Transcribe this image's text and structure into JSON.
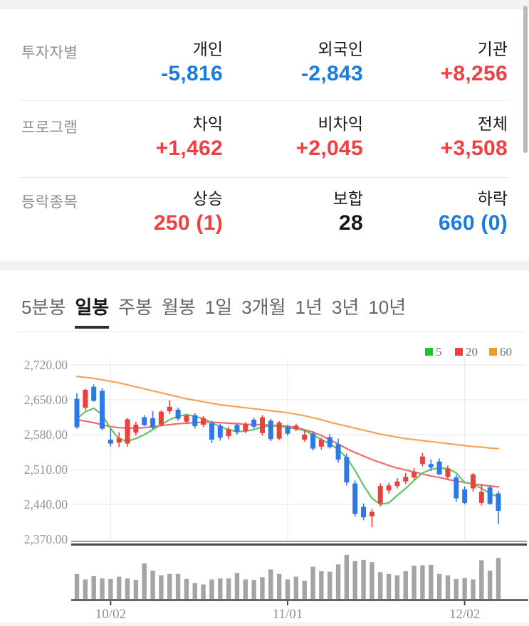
{
  "stats": {
    "colors": {
      "blue": "#1b7ce0",
      "red": "#ee4143",
      "black": "#17181a"
    },
    "rows": [
      {
        "label": "투자자별",
        "cols": [
          {
            "header": "개인",
            "value": "-5,816",
            "color": "blue"
          },
          {
            "header": "외국인",
            "value": "-2,843",
            "color": "blue"
          },
          {
            "header": "기관",
            "value": "+8,256",
            "color": "red"
          }
        ]
      },
      {
        "label": "프로그램",
        "cols": [
          {
            "header": "차익",
            "value": "+1,462",
            "color": "red"
          },
          {
            "header": "비차익",
            "value": "+2,045",
            "color": "red"
          },
          {
            "header": "전체",
            "value": "+3,508",
            "color": "red"
          }
        ]
      },
      {
        "label": "등락종목",
        "cols": [
          {
            "header": "상승",
            "value": "250 (1)",
            "color": "red"
          },
          {
            "header": "보합",
            "value": "28",
            "color": "black"
          },
          {
            "header": "하락",
            "value": "660 (0)",
            "color": "blue"
          }
        ]
      }
    ]
  },
  "tabs": {
    "items": [
      "5분봉",
      "일봉",
      "주봉",
      "월봉",
      "1일",
      "3개월",
      "1년",
      "3년",
      "10년"
    ],
    "active_index": 1
  },
  "chart_data": {
    "type": "candlestick+volume",
    "title": "",
    "y_axis_labels": [
      "2,720.00",
      "2,650.00",
      "2,580.00",
      "2,510.00",
      "2,440.00",
      "2,370.00"
    ],
    "y_min": 2370,
    "y_max": 2720,
    "x_tick_labels": [
      "10/02",
      "11/01",
      "12/02"
    ],
    "x_tick_indices": [
      4,
      25,
      46
    ],
    "legend": [
      {
        "label": "5",
        "color": "#1fc42c"
      },
      {
        "label": "20",
        "color": "#ee3f3e"
      },
      {
        "label": "60",
        "color": "#f59b28"
      }
    ],
    "colors": {
      "up": "#e8423f",
      "down": "#2e79e7",
      "ma5": "#63c368",
      "ma20": "#ed6b6d",
      "ma60": "#f2a558",
      "grid": "#e9ebee",
      "axis_text": "#8d959e",
      "date_text": "#8b9096",
      "volume_bar": "#a2a4a6",
      "dark_line": "#45484d"
    },
    "candles": [
      [
        2652,
        2663,
        2592,
        2595
      ],
      [
        2634,
        2672,
        2629,
        2670
      ],
      [
        2676,
        2681,
        2646,
        2648
      ],
      [
        2668,
        2673,
        2589,
        2592
      ],
      [
        2570,
        2592,
        2556,
        2562
      ],
      [
        2564,
        2585,
        2555,
        2573
      ],
      [
        2562,
        2613,
        2556,
        2611
      ],
      [
        2584,
        2606,
        2578,
        2600
      ],
      [
        2615,
        2619,
        2597,
        2599
      ],
      [
        2613,
        2627,
        2591,
        2594
      ],
      [
        2600,
        2629,
        2597,
        2626
      ],
      [
        2627,
        2649,
        2622,
        2636
      ],
      [
        2630,
        2634,
        2608,
        2612
      ],
      [
        2606,
        2622,
        2601,
        2618
      ],
      [
        2619,
        2623,
        2592,
        2597
      ],
      [
        2600,
        2617,
        2595,
        2613
      ],
      [
        2603,
        2608,
        2563,
        2570
      ],
      [
        2598,
        2602,
        2568,
        2574
      ],
      [
        2577,
        2596,
        2571,
        2591
      ],
      [
        2599,
        2603,
        2580,
        2585
      ],
      [
        2587,
        2605,
        2583,
        2601
      ],
      [
        2610,
        2614,
        2592,
        2596
      ],
      [
        2583,
        2619,
        2578,
        2615
      ],
      [
        2608,
        2612,
        2567,
        2571
      ],
      [
        2572,
        2607,
        2569,
        2604
      ],
      [
        2596,
        2600,
        2578,
        2582
      ],
      [
        2591,
        2602,
        2587,
        2598
      ],
      [
        2570,
        2588,
        2566,
        2580
      ],
      [
        2582,
        2587,
        2548,
        2552
      ],
      [
        2556,
        2573,
        2550,
        2570
      ],
      [
        2575,
        2581,
        2552,
        2555
      ],
      [
        2561,
        2572,
        2524,
        2530
      ],
      [
        2535,
        2542,
        2478,
        2484
      ],
      [
        2482,
        2488,
        2415,
        2421
      ],
      [
        2435,
        2442,
        2408,
        2414
      ],
      [
        2416,
        2430,
        2394,
        2425
      ],
      [
        2442,
        2482,
        2436,
        2477
      ],
      [
        2468,
        2483,
        2462,
        2478
      ],
      [
        2477,
        2493,
        2472,
        2486
      ],
      [
        2486,
        2503,
        2481,
        2495
      ],
      [
        2494,
        2513,
        2489,
        2505
      ],
      [
        2521,
        2543,
        2516,
        2536
      ],
      [
        2521,
        2530,
        2507,
        2514
      ],
      [
        2526,
        2532,
        2499,
        2500
      ],
      [
        2495,
        2518,
        2490,
        2512
      ],
      [
        2494,
        2499,
        2445,
        2452
      ],
      [
        2470,
        2476,
        2440,
        2443
      ],
      [
        2472,
        2503,
        2466,
        2500
      ],
      [
        2443,
        2481,
        2438,
        2465
      ],
      [
        2474,
        2478,
        2439,
        2441
      ],
      [
        2462,
        2467,
        2400,
        2427
      ]
    ],
    "ma5": [
      2612,
      2626,
      2633,
      2620,
      2592,
      2571,
      2567,
      2572,
      2580,
      2590,
      2600,
      2610,
      2617,
      2620,
      2617,
      2612,
      2604,
      2596,
      2590,
      2586,
      2587,
      2590,
      2596,
      2598,
      2597,
      2594,
      2592,
      2588,
      2580,
      2570,
      2562,
      2550,
      2534,
      2508,
      2478,
      2452,
      2440,
      2443,
      2458,
      2472,
      2488,
      2503,
      2510,
      2513,
      2512,
      2503,
      2484,
      2481,
      2472,
      2462,
      2455
    ],
    "ma20": [
      2610,
      2607,
      2604,
      2600,
      2596,
      2594,
      2593,
      2593,
      2594,
      2596,
      2598,
      2600,
      2602,
      2603,
      2604,
      2605,
      2605,
      2604,
      2603,
      2602,
      2601,
      2600,
      2600,
      2599,
      2598,
      2597,
      2594,
      2590,
      2585,
      2578,
      2570,
      2561,
      2552,
      2544,
      2537,
      2530,
      2524,
      2518,
      2513,
      2509,
      2505,
      2501,
      2497,
      2494,
      2490,
      2487,
      2484,
      2481,
      2479,
      2477,
      2475
    ],
    "ma60": [
      2697,
      2695,
      2693,
      2690,
      2687,
      2684,
      2680,
      2676,
      2672,
      2668,
      2664,
      2660,
      2656,
      2652,
      2649,
      2646,
      2643,
      2640,
      2638,
      2636,
      2634,
      2632,
      2630,
      2628,
      2626,
      2624,
      2621,
      2618,
      2614,
      2610,
      2605,
      2601,
      2597,
      2593,
      2589,
      2585,
      2581,
      2578,
      2575,
      2572,
      2570,
      2568,
      2566,
      2564,
      2562,
      2560,
      2558,
      2556,
      2555,
      2553,
      2552
    ],
    "volume": [
      0.55,
      0.43,
      0.5,
      0.45,
      0.44,
      0.49,
      0.45,
      0.42,
      0.78,
      0.62,
      0.52,
      0.55,
      0.55,
      0.44,
      0.35,
      0.32,
      0.43,
      0.45,
      0.45,
      0.57,
      0.43,
      0.42,
      0.48,
      0.65,
      0.55,
      0.43,
      0.49,
      0.4,
      0.71,
      0.61,
      0.6,
      0.76,
      0.97,
      0.83,
      0.86,
      0.81,
      0.59,
      0.55,
      0.52,
      0.61,
      0.73,
      0.74,
      0.75,
      0.55,
      0.52,
      0.44,
      0.46,
      0.43,
      0.85,
      0.62,
      0.9
    ]
  }
}
